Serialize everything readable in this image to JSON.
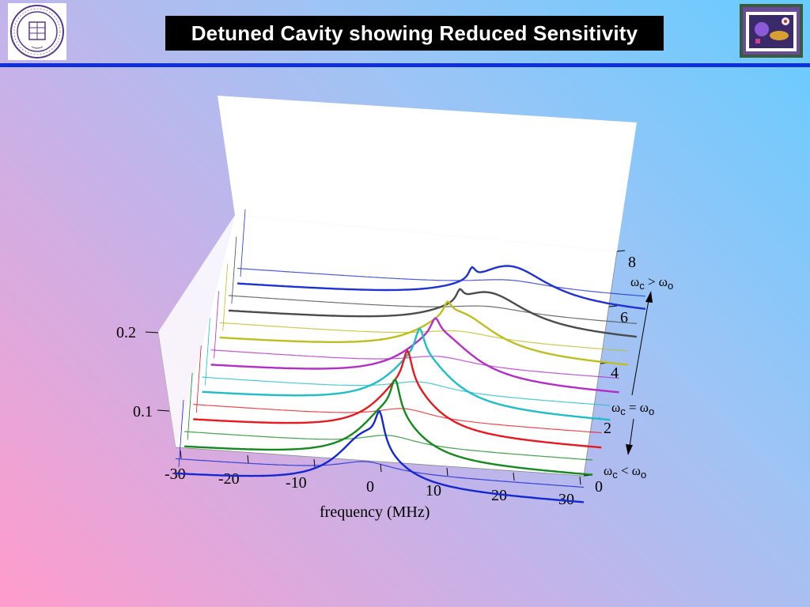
{
  "slide": {
    "title": "Detuned Cavity showing Reduced Sensitivity"
  },
  "logos": {
    "left": "northwestern-university-seal",
    "right": "photo-thumbnail"
  },
  "colors": {
    "title_bg": "#000000",
    "title_text": "#ffffff",
    "header_rule": "#0f2fd8",
    "series": [
      "#1428d2",
      "#138a1e",
      "#e8191e",
      "#1ebec8",
      "#b42dc8",
      "#bebe1e",
      "#4b4b4b",
      "#1e32d2"
    ]
  },
  "chart_data": {
    "type": "line",
    "projection": "3d-waterfall",
    "xlabel": "frequency (MHz)",
    "x_ticks": [
      "-30",
      "-20",
      "-10",
      "0",
      "10",
      "20",
      "30"
    ],
    "xlim": [
      -30,
      30
    ],
    "z_ticks": [
      "0",
      "2",
      "4",
      "6",
      "8"
    ],
    "zlim": [
      0,
      8
    ],
    "y_ticks": [
      "0.1",
      "0.2"
    ],
    "grid": false,
    "annotations": {
      "upper": {
        "omega": "ω",
        "sub": "c",
        "op": " > ",
        "omega2": "ω",
        "sub2": "o"
      },
      "middle": {
        "omega": "ω",
        "sub": "c",
        "op": " = ",
        "omega2": "ω",
        "sub2": "o"
      },
      "lower": {
        "omega": "ω",
        "sub": "c",
        "op": " < ",
        "omega2": "ω",
        "sub2": "o"
      }
    },
    "series": [
      {
        "z": 0,
        "color": "#1428d2",
        "baseline": 0.06,
        "broad_center": -2,
        "broad_height": 0.05,
        "broad_width": 5,
        "narrow_center": 0,
        "narrow_height": 0.03,
        "narrow_width": 0.8
      },
      {
        "z": 1,
        "color": "#138a1e",
        "baseline": 0.06,
        "broad_center": 0,
        "broad_height": 0.05,
        "broad_width": 5,
        "narrow_center": 1,
        "narrow_height": 0.03,
        "narrow_width": 0.8
      },
      {
        "z": 2,
        "color": "#e8191e",
        "baseline": 0.06,
        "broad_center": 1,
        "broad_height": 0.05,
        "broad_width": 5,
        "narrow_center": 1.5,
        "narrow_height": 0.03,
        "narrow_width": 0.8
      },
      {
        "z": 3,
        "color": "#1ebec8",
        "baseline": 0.06,
        "broad_center": 2,
        "broad_height": 0.05,
        "broad_width": 5.5,
        "narrow_center": 2,
        "narrow_height": 0.025,
        "narrow_width": 0.8
      },
      {
        "z": 4,
        "color": "#b42dc8",
        "baseline": 0.06,
        "broad_center": 3.5,
        "broad_height": 0.045,
        "broad_width": 6,
        "narrow_center": 3,
        "narrow_height": 0.015,
        "narrow_width": 0.8
      },
      {
        "z": 5,
        "color": "#bebe1e",
        "baseline": 0.06,
        "broad_center": 5,
        "broad_height": 0.04,
        "broad_width": 6.5,
        "narrow_center": 3.5,
        "narrow_height": 0.012,
        "narrow_width": 0.7
      },
      {
        "z": 6,
        "color": "#4b4b4b",
        "baseline": 0.06,
        "broad_center": 8,
        "broad_height": 0.035,
        "broad_width": 7,
        "narrow_center": 4,
        "narrow_height": 0.01,
        "narrow_width": 0.6
      },
      {
        "z": 7,
        "color": "#1e32d2",
        "baseline": 0.06,
        "broad_center": 10,
        "broad_height": 0.035,
        "broad_width": 7,
        "narrow_center": 4.5,
        "narrow_height": 0.01,
        "narrow_width": 0.6
      }
    ]
  }
}
